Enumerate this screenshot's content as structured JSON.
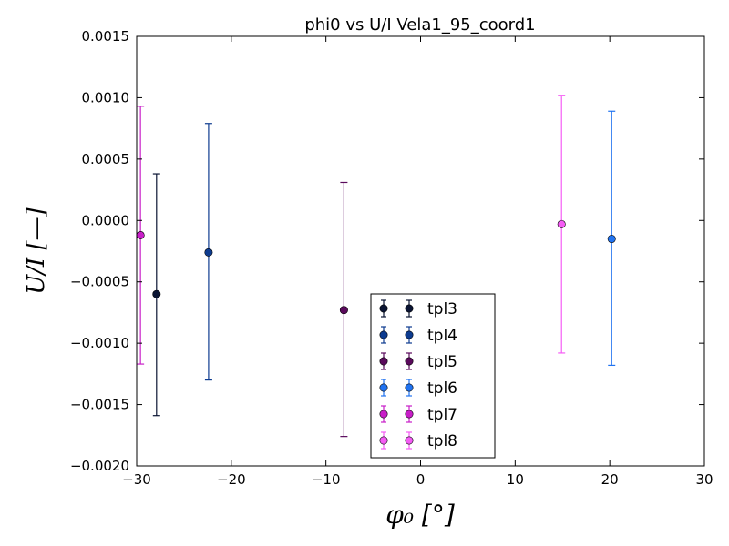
{
  "chart_data": {
    "type": "scatter",
    "title": "phi0 vs U/I Vela1_95_coord1",
    "xlabel": "φ₀ [°]",
    "ylabel": "U/I [—]",
    "xlim": [
      -30,
      30
    ],
    "ylim": [
      -0.002,
      0.0015
    ],
    "xticks": [
      -30,
      -20,
      -10,
      0,
      10,
      20,
      30
    ],
    "xtick_labels": [
      "−30",
      "−20",
      "−10",
      "0",
      "10",
      "20",
      "30"
    ],
    "yticks": [
      0.0015,
      0.001,
      0.0005,
      0.0,
      -0.0005,
      -0.001,
      -0.0015,
      -0.002
    ],
    "ytick_labels": [
      "0.0015",
      "0.0010",
      "0.0005",
      "0.0000",
      "−0.0005",
      "−0.0010",
      "−0.0015",
      "−0.0020"
    ],
    "grid": false,
    "legend_position": "lower-center",
    "series": [
      {
        "name": "tpl3",
        "color": "#0a1433",
        "x": [
          -27.9
        ],
        "y": [
          -0.0006
        ],
        "yerr_low": [
          -0.00159
        ],
        "yerr_high": [
          0.00038
        ]
      },
      {
        "name": "tpl4",
        "color": "#0d3b8f",
        "x": [
          -22.4
        ],
        "y": [
          -0.00026
        ],
        "yerr_low": [
          -0.0013
        ],
        "yerr_high": [
          0.00079
        ]
      },
      {
        "name": "tpl5",
        "color": "#5a0a5c",
        "x": [
          -8.1
        ],
        "y": [
          -0.00073
        ],
        "yerr_low": [
          -0.00176
        ],
        "yerr_high": [
          0.00031
        ]
      },
      {
        "name": "tpl6",
        "color": "#2173f0",
        "x": [
          20.2
        ],
        "y": [
          -0.00015
        ],
        "yerr_low": [
          -0.00118
        ],
        "yerr_high": [
          0.00089
        ]
      },
      {
        "name": "tpl7",
        "color": "#c81ec8",
        "x": [
          -29.6
        ],
        "y": [
          -0.00012
        ],
        "yerr_low": [
          -0.00117
        ],
        "yerr_high": [
          0.00093
        ]
      },
      {
        "name": "tpl8",
        "color": "#f55cf5",
        "x": [
          14.9
        ],
        "y": [
          -3e-05
        ],
        "yerr_low": [
          -0.00108
        ],
        "yerr_high": [
          0.00102
        ]
      }
    ]
  }
}
